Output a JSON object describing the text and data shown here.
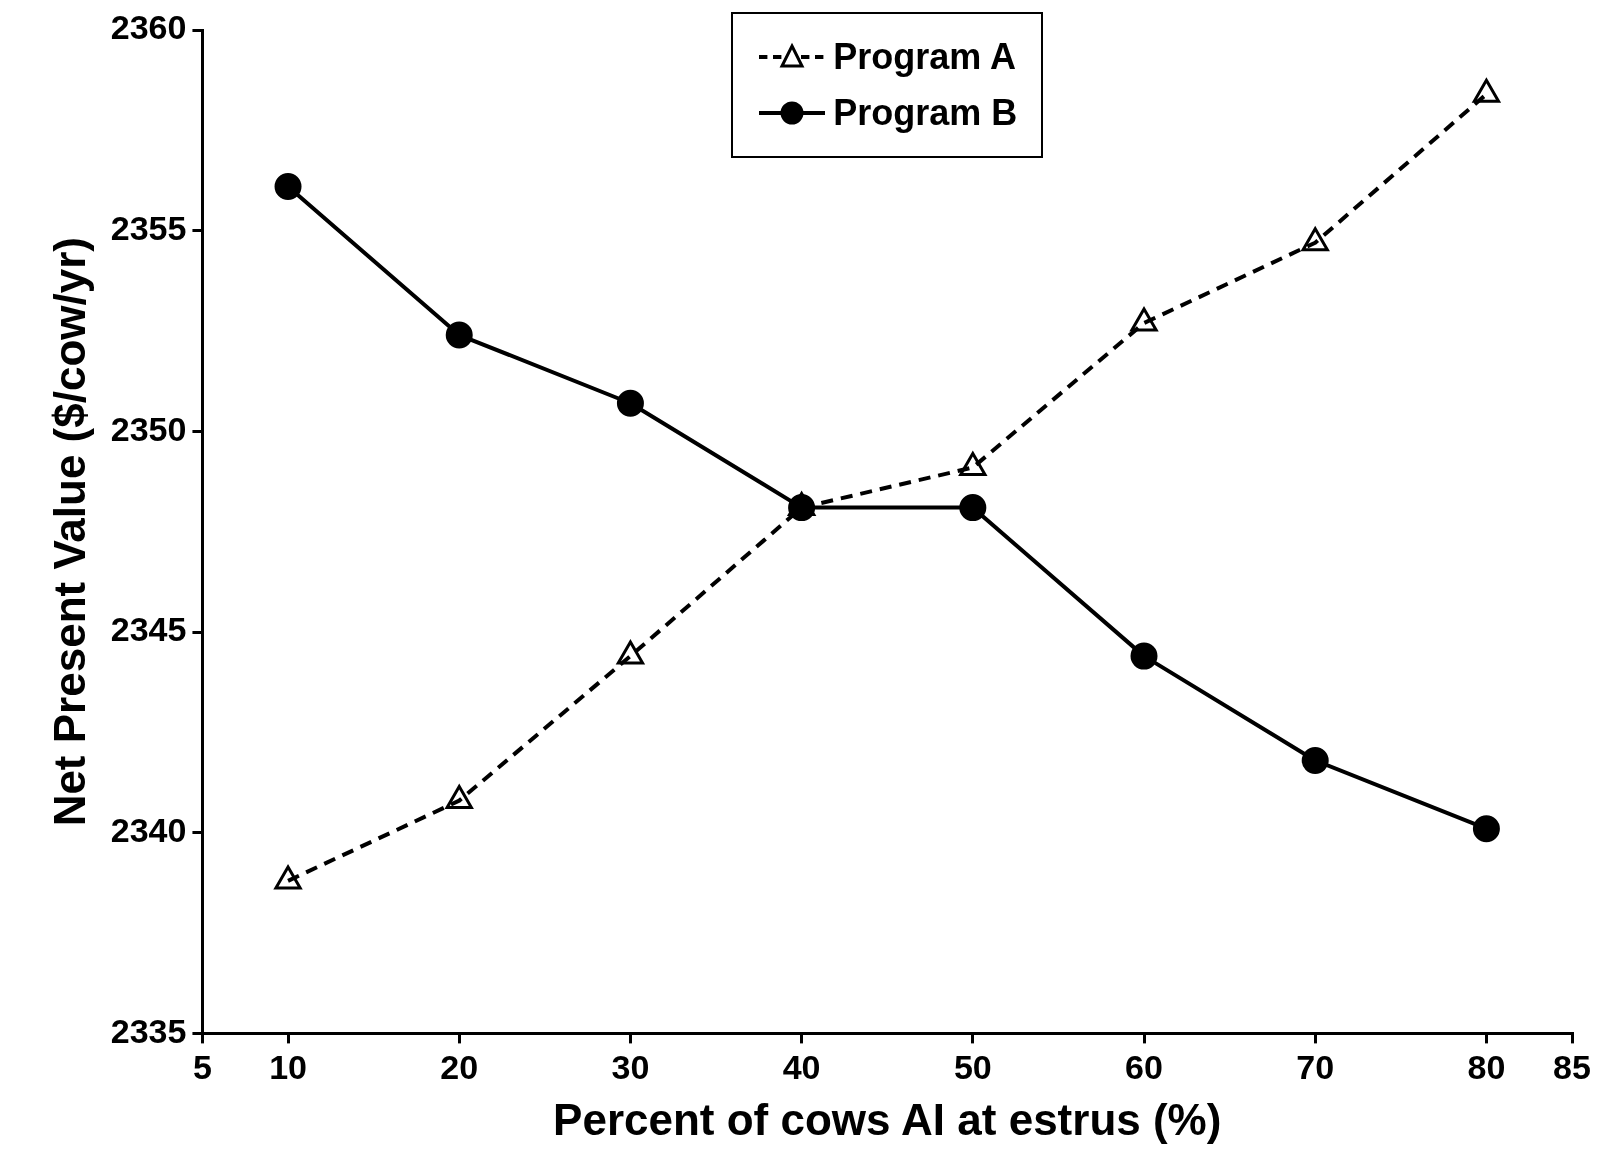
{
  "chart_data": {
    "type": "line",
    "xlabel": "Percent of cows AI at estrus (%)",
    "ylabel": "Net Present Value ($/cow/yr)",
    "x": [
      10,
      20,
      30,
      40,
      50,
      60,
      70,
      80
    ],
    "series": [
      {
        "name": "Program A",
        "color": "#000000",
        "marker": "triangle",
        "line_style": "dashed",
        "values": [
          2338.8,
          2340.8,
          2344.4,
          2348.1,
          2349.1,
          2352.7,
          2354.7,
          2358.4
        ]
      },
      {
        "name": "Program B",
        "color": "#000000",
        "marker": "circle",
        "line_style": "solid",
        "values": [
          2356.1,
          2352.4,
          2350.7,
          2348.1,
          2348.1,
          2344.4,
          2341.8,
          2340.1
        ]
      }
    ],
    "xlim": [
      5,
      85
    ],
    "xticks": [
      5,
      10,
      20,
      30,
      40,
      50,
      60,
      70,
      80,
      85
    ],
    "ylim": [
      2335,
      2360
    ],
    "yticks": [
      2335,
      2340,
      2345,
      2350,
      2355,
      2360
    ],
    "grid": false,
    "legend": "top"
  }
}
